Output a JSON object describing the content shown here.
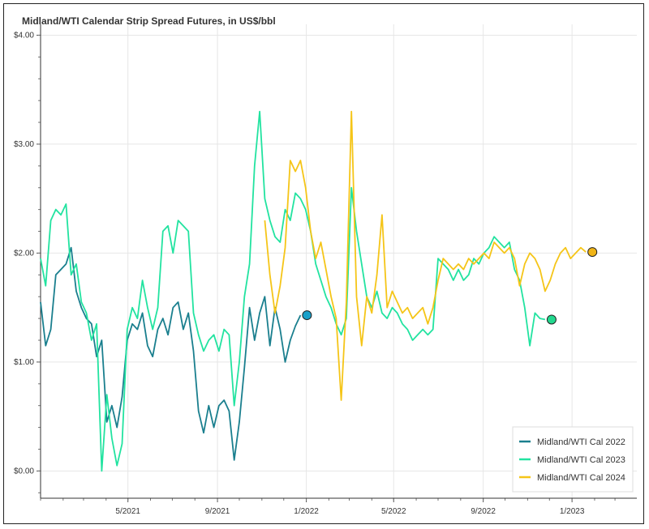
{
  "chart_data": {
    "type": "line",
    "title": "Midland/WTI Calendar Strip Spread Futures, in US$/bbl",
    "xlabel": "",
    "ylabel": "",
    "x_ticks": [
      "5/2021",
      "9/2021",
      "1/2022",
      "5/2022",
      "9/2022",
      "1/2023"
    ],
    "y_ticks": [
      "$0.00",
      "$1.00",
      "$2.00",
      "$3.00",
      "$4.00"
    ],
    "xlim": [
      "2021-01-01",
      "2023-03-31"
    ],
    "ylim": [
      -0.25,
      4.1
    ],
    "grid": true,
    "legend": "bottom-right",
    "series": [
      {
        "name": "Midland/WTI Cal 2022",
        "color": "#1a7f8e",
        "end_marker_color": "#1aa0c9",
        "points": [
          [
            "2021-01-01",
            1.55
          ],
          [
            "2021-01-08",
            1.15
          ],
          [
            "2021-01-15",
            1.3
          ],
          [
            "2021-01-22",
            1.8
          ],
          [
            "2021-01-29",
            1.85
          ],
          [
            "2021-02-05",
            1.9
          ],
          [
            "2021-02-12",
            2.05
          ],
          [
            "2021-02-19",
            1.65
          ],
          [
            "2021-02-26",
            1.5
          ],
          [
            "2021-03-05",
            1.4
          ],
          [
            "2021-03-12",
            1.35
          ],
          [
            "2021-03-19",
            1.05
          ],
          [
            "2021-03-26",
            1.2
          ],
          [
            "2021-04-02",
            0.45
          ],
          [
            "2021-04-09",
            0.6
          ],
          [
            "2021-04-16",
            0.4
          ],
          [
            "2021-04-23",
            0.68
          ],
          [
            "2021-04-30",
            1.2
          ],
          [
            "2021-05-07",
            1.35
          ],
          [
            "2021-05-14",
            1.3
          ],
          [
            "2021-05-21",
            1.45
          ],
          [
            "2021-05-28",
            1.15
          ],
          [
            "2021-06-04",
            1.05
          ],
          [
            "2021-06-11",
            1.3
          ],
          [
            "2021-06-18",
            1.4
          ],
          [
            "2021-06-25",
            1.25
          ],
          [
            "2021-07-02",
            1.5
          ],
          [
            "2021-07-09",
            1.55
          ],
          [
            "2021-07-16",
            1.3
          ],
          [
            "2021-07-23",
            1.45
          ],
          [
            "2021-07-30",
            1.1
          ],
          [
            "2021-08-06",
            0.55
          ],
          [
            "2021-08-13",
            0.35
          ],
          [
            "2021-08-20",
            0.6
          ],
          [
            "2021-08-27",
            0.4
          ],
          [
            "2021-09-03",
            0.6
          ],
          [
            "2021-09-10",
            0.65
          ],
          [
            "2021-09-17",
            0.55
          ],
          [
            "2021-09-24",
            0.1
          ],
          [
            "2021-10-01",
            0.45
          ],
          [
            "2021-10-08",
            0.95
          ],
          [
            "2021-10-15",
            1.5
          ],
          [
            "2021-10-22",
            1.2
          ],
          [
            "2021-10-29",
            1.45
          ],
          [
            "2021-11-05",
            1.6
          ],
          [
            "2021-11-12",
            1.15
          ],
          [
            "2021-11-19",
            1.5
          ],
          [
            "2021-11-26",
            1.3
          ],
          [
            "2021-12-03",
            1.0
          ],
          [
            "2021-12-10",
            1.2
          ],
          [
            "2021-12-17",
            1.33
          ],
          [
            "2021-12-24",
            1.43
          ]
        ]
      },
      {
        "name": "Midland/WTI Cal 2023",
        "color": "#22e3a0",
        "end_marker_color": "#22d88e",
        "points": [
          [
            "2021-01-01",
            1.95
          ],
          [
            "2021-01-08",
            1.7
          ],
          [
            "2021-01-15",
            2.3
          ],
          [
            "2021-01-22",
            2.4
          ],
          [
            "2021-01-29",
            2.35
          ],
          [
            "2021-02-05",
            2.45
          ],
          [
            "2021-02-12",
            1.8
          ],
          [
            "2021-02-19",
            1.9
          ],
          [
            "2021-02-26",
            1.55
          ],
          [
            "2021-03-05",
            1.45
          ],
          [
            "2021-03-12",
            1.2
          ],
          [
            "2021-03-19",
            1.35
          ],
          [
            "2021-03-26",
            0.0
          ],
          [
            "2021-04-02",
            0.7
          ],
          [
            "2021-04-09",
            0.3
          ],
          [
            "2021-04-16",
            0.05
          ],
          [
            "2021-04-23",
            0.25
          ],
          [
            "2021-04-30",
            1.3
          ],
          [
            "2021-05-07",
            1.5
          ],
          [
            "2021-05-14",
            1.4
          ],
          [
            "2021-05-21",
            1.75
          ],
          [
            "2021-05-28",
            1.5
          ],
          [
            "2021-06-04",
            1.3
          ],
          [
            "2021-06-11",
            1.5
          ],
          [
            "2021-06-18",
            2.2
          ],
          [
            "2021-06-25",
            2.25
          ],
          [
            "2021-07-02",
            2.0
          ],
          [
            "2021-07-09",
            2.3
          ],
          [
            "2021-07-16",
            2.25
          ],
          [
            "2021-07-23",
            2.2
          ],
          [
            "2021-07-30",
            1.45
          ],
          [
            "2021-08-06",
            1.25
          ],
          [
            "2021-08-13",
            1.1
          ],
          [
            "2021-08-20",
            1.2
          ],
          [
            "2021-08-27",
            1.25
          ],
          [
            "2021-09-03",
            1.1
          ],
          [
            "2021-09-10",
            1.3
          ],
          [
            "2021-09-17",
            1.25
          ],
          [
            "2021-09-24",
            0.6
          ],
          [
            "2021-10-01",
            1.0
          ],
          [
            "2021-10-08",
            1.6
          ],
          [
            "2021-10-15",
            1.9
          ],
          [
            "2021-10-22",
            2.8
          ],
          [
            "2021-10-29",
            3.3
          ],
          [
            "2021-11-05",
            2.5
          ],
          [
            "2021-11-12",
            2.3
          ],
          [
            "2021-11-19",
            2.15
          ],
          [
            "2021-11-26",
            2.1
          ],
          [
            "2021-12-03",
            2.4
          ],
          [
            "2021-12-10",
            2.3
          ],
          [
            "2021-12-17",
            2.55
          ],
          [
            "2021-12-24",
            2.5
          ],
          [
            "2021-12-31",
            2.4
          ],
          [
            "2022-01-07",
            2.2
          ],
          [
            "2022-01-14",
            1.9
          ],
          [
            "2022-01-21",
            1.75
          ],
          [
            "2022-01-28",
            1.6
          ],
          [
            "2022-02-04",
            1.5
          ],
          [
            "2022-02-11",
            1.35
          ],
          [
            "2022-02-18",
            1.25
          ],
          [
            "2022-02-25",
            1.4
          ],
          [
            "2022-03-04",
            2.6
          ],
          [
            "2022-03-11",
            2.2
          ],
          [
            "2022-03-18",
            1.9
          ],
          [
            "2022-03-25",
            1.6
          ],
          [
            "2022-04-01",
            1.5
          ],
          [
            "2022-04-08",
            1.65
          ],
          [
            "2022-04-15",
            1.45
          ],
          [
            "2022-04-22",
            1.4
          ],
          [
            "2022-04-29",
            1.5
          ],
          [
            "2022-05-06",
            1.45
          ],
          [
            "2022-05-13",
            1.35
          ],
          [
            "2022-05-20",
            1.3
          ],
          [
            "2022-05-27",
            1.2
          ],
          [
            "2022-06-03",
            1.25
          ],
          [
            "2022-06-10",
            1.3
          ],
          [
            "2022-06-17",
            1.25
          ],
          [
            "2022-06-24",
            1.3
          ],
          [
            "2022-07-01",
            1.95
          ],
          [
            "2022-07-08",
            1.9
          ],
          [
            "2022-07-15",
            1.85
          ],
          [
            "2022-07-22",
            1.75
          ],
          [
            "2022-07-29",
            1.85
          ],
          [
            "2022-08-05",
            1.75
          ],
          [
            "2022-08-12",
            1.8
          ],
          [
            "2022-08-19",
            1.95
          ],
          [
            "2022-08-26",
            1.9
          ],
          [
            "2022-09-02",
            2.0
          ],
          [
            "2022-09-09",
            2.05
          ],
          [
            "2022-09-16",
            2.15
          ],
          [
            "2022-09-23",
            2.1
          ],
          [
            "2022-09-30",
            2.05
          ],
          [
            "2022-10-07",
            2.1
          ],
          [
            "2022-10-14",
            1.85
          ],
          [
            "2022-10-21",
            1.75
          ],
          [
            "2022-10-28",
            1.5
          ],
          [
            "2022-11-04",
            1.15
          ],
          [
            "2022-11-11",
            1.45
          ],
          [
            "2022-11-18",
            1.4
          ],
          [
            "2022-11-25",
            1.39
          ]
        ]
      },
      {
        "name": "Midland/WTI Cal 2024",
        "color": "#f5c518",
        "end_marker_color": "#f0b417",
        "points": [
          [
            "2021-11-05",
            2.3
          ],
          [
            "2021-11-12",
            1.8
          ],
          [
            "2021-11-19",
            1.45
          ],
          [
            "2021-11-26",
            1.7
          ],
          [
            "2021-12-03",
            2.05
          ],
          [
            "2021-12-10",
            2.85
          ],
          [
            "2021-12-17",
            2.75
          ],
          [
            "2021-12-24",
            2.85
          ],
          [
            "2021-12-31",
            2.6
          ],
          [
            "2022-01-07",
            2.2
          ],
          [
            "2022-01-14",
            1.95
          ],
          [
            "2022-01-21",
            2.1
          ],
          [
            "2022-01-28",
            1.85
          ],
          [
            "2022-02-04",
            1.6
          ],
          [
            "2022-02-11",
            1.4
          ],
          [
            "2022-02-18",
            0.65
          ],
          [
            "2022-02-25",
            1.55
          ],
          [
            "2022-03-04",
            3.3
          ],
          [
            "2022-03-11",
            1.6
          ],
          [
            "2022-03-18",
            1.15
          ],
          [
            "2022-03-25",
            1.6
          ],
          [
            "2022-04-01",
            1.45
          ],
          [
            "2022-04-08",
            1.8
          ],
          [
            "2022-04-15",
            2.35
          ],
          [
            "2022-04-22",
            1.5
          ],
          [
            "2022-04-29",
            1.65
          ],
          [
            "2022-05-06",
            1.55
          ],
          [
            "2022-05-13",
            1.45
          ],
          [
            "2022-05-20",
            1.5
          ],
          [
            "2022-05-27",
            1.4
          ],
          [
            "2022-06-03",
            1.45
          ],
          [
            "2022-06-10",
            1.5
          ],
          [
            "2022-06-17",
            1.35
          ],
          [
            "2022-06-24",
            1.5
          ],
          [
            "2022-07-01",
            1.75
          ],
          [
            "2022-07-08",
            1.95
          ],
          [
            "2022-07-15",
            1.9
          ],
          [
            "2022-07-22",
            1.85
          ],
          [
            "2022-07-29",
            1.9
          ],
          [
            "2022-08-05",
            1.85
          ],
          [
            "2022-08-12",
            1.95
          ],
          [
            "2022-08-19",
            1.9
          ],
          [
            "2022-08-26",
            1.95
          ],
          [
            "2022-09-02",
            2.0
          ],
          [
            "2022-09-09",
            1.95
          ],
          [
            "2022-09-16",
            2.1
          ],
          [
            "2022-09-23",
            2.05
          ],
          [
            "2022-09-30",
            2.0
          ],
          [
            "2022-10-07",
            2.05
          ],
          [
            "2022-10-14",
            1.95
          ],
          [
            "2022-10-21",
            1.7
          ],
          [
            "2022-10-28",
            1.9
          ],
          [
            "2022-11-04",
            2.0
          ],
          [
            "2022-11-11",
            1.95
          ],
          [
            "2022-11-18",
            1.85
          ],
          [
            "2022-11-25",
            1.65
          ],
          [
            "2022-12-02",
            1.75
          ],
          [
            "2022-12-09",
            1.9
          ],
          [
            "2022-12-16",
            2.0
          ],
          [
            "2022-12-23",
            2.05
          ],
          [
            "2022-12-30",
            1.95
          ],
          [
            "2023-01-06",
            2.0
          ],
          [
            "2023-01-13",
            2.05
          ],
          [
            "2023-01-20",
            2.01
          ]
        ]
      }
    ]
  }
}
